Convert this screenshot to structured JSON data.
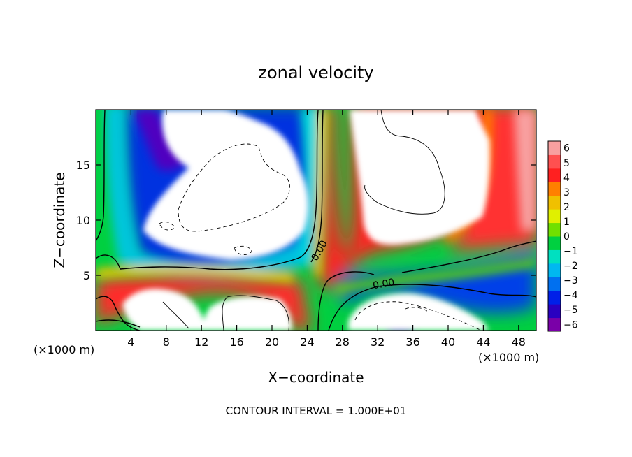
{
  "chart_data": {
    "type": "heatmap",
    "title": "zonal velocity",
    "xlabel": "X−coordinate",
    "ylabel": "Z−coordinate",
    "x_unit_left": "(×1000 m)",
    "x_unit_right": "(×1000 m)",
    "xlim": [
      0,
      50
    ],
    "ylim": [
      0,
      20
    ],
    "x_ticks": [
      4,
      8,
      12,
      16,
      20,
      24,
      28,
      32,
      36,
      40,
      44,
      48
    ],
    "x_tick_labels": [
      "4",
      "8",
      "12",
      "16",
      "20",
      "24",
      "28",
      "32",
      "36",
      "40",
      "44",
      "48"
    ],
    "y_ticks": [
      5,
      10,
      15
    ],
    "y_tick_labels": [
      "5",
      "10",
      "15"
    ],
    "colorbar": {
      "levels": [
        -6,
        -5,
        -4,
        -3,
        -2,
        -1,
        0,
        1,
        2,
        3,
        4,
        5,
        6
      ],
      "labels": [
        "−6",
        "−5",
        "−4",
        "−3",
        "−2",
        "−1",
        "0",
        "1",
        "2",
        "3",
        "4",
        "5",
        "6"
      ],
      "colors": [
        "#7a00a8",
        "#2a00c0",
        "#0020e8",
        "#0070f0",
        "#00b8f0",
        "#00e0c0",
        "#00d040",
        "#70e000",
        "#e0f000",
        "#f0c000",
        "#ff8000",
        "#ff2020",
        "#ff5050",
        "#f8a0a0"
      ],
      "saturated_color": "#ffffff"
    },
    "contour_labels": [
      "0.00",
      "0.00"
    ],
    "footer": "CONTOUR INTERVAL = 1.000E+01"
  }
}
